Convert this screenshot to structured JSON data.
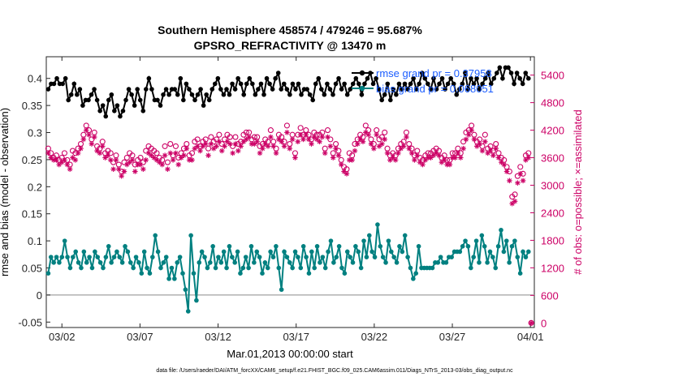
{
  "chart_data": {
    "type": "line",
    "title": "Southern Hemisphere 458574 / 479246 = 95.687%",
    "subtitle": "GPSRO_REFRACTIVITY @ 13470 m",
    "xlabel": "Mar.01,2013 00:00:00 start",
    "ylabel_left": "rmse and bias (model - observation)",
    "ylabel_right": "# of obs: o=possible; ×=assimilated",
    "footnote": "data file: /Users/raeder/DAI/ATM_forcXX/CAM6_setup/f.e21.FHIST_BGC.f09_025.CAM6assim.011/Diags_NTrS_2013-03/obs_diag_output.nc",
    "x_ticks": [
      "03/02",
      "03/07",
      "03/12",
      "03/17",
      "03/22",
      "03/27",
      "04/01"
    ],
    "x_tick_days": [
      1,
      6,
      11,
      16,
      21,
      26,
      31
    ],
    "x_range_days": [
      0,
      31.25
    ],
    "ylim_left": [
      -0.06,
      0.44
    ],
    "ylim_right": [
      -100,
      5800
    ],
    "y_ticks_left": [
      "-0.05",
      "0",
      "0.05",
      "0.1",
      "0.15",
      "0.2",
      "0.25",
      "0.3",
      "0.35",
      "0.4"
    ],
    "y_ticks_right": [
      "0",
      "600",
      "1200",
      "1800",
      "2400",
      "3000",
      "3600",
      "4200",
      "4800",
      "5400"
    ],
    "grid": false,
    "legend_position": "top-right",
    "colors": {
      "rmse": "#000000",
      "bias": "#008080",
      "counts": "#cc0066",
      "zero_line": "#b0b0b0",
      "legend_text": "#1a5cff"
    },
    "series": [
      {
        "name": "rmse grand pr = 0.37958",
        "axis": "left",
        "values": [
          0.38,
          0.39,
          0.39,
          0.4,
          0.39,
          0.39,
          0.4,
          0.36,
          0.37,
          0.39,
          0.37,
          0.38,
          0.35,
          0.36,
          0.36,
          0.37,
          0.38,
          0.36,
          0.34,
          0.35,
          0.33,
          0.36,
          0.37,
          0.34,
          0.35,
          0.33,
          0.34,
          0.36,
          0.38,
          0.37,
          0.35,
          0.38,
          0.36,
          0.34,
          0.38,
          0.4,
          0.38,
          0.36,
          0.36,
          0.35,
          0.37,
          0.38,
          0.37,
          0.38,
          0.38,
          0.37,
          0.4,
          0.36,
          0.39,
          0.38,
          0.37,
          0.36,
          0.37,
          0.38,
          0.35,
          0.37,
          0.36,
          0.38,
          0.39,
          0.4,
          0.38,
          0.37,
          0.38,
          0.37,
          0.39,
          0.38,
          0.4,
          0.39,
          0.37,
          0.39,
          0.4,
          0.39,
          0.37,
          0.38,
          0.39,
          0.37,
          0.4,
          0.39,
          0.38,
          0.4,
          0.41,
          0.38,
          0.39,
          0.38,
          0.37,
          0.39,
          0.38,
          0.39,
          0.37,
          0.38,
          0.38,
          0.37,
          0.36,
          0.39,
          0.4,
          0.38,
          0.37,
          0.39,
          0.38,
          0.37,
          0.39,
          0.4,
          0.38,
          0.39,
          0.37,
          0.38,
          0.39,
          0.4,
          0.39,
          0.37,
          0.39,
          0.4,
          0.41,
          0.39,
          0.4,
          0.38,
          0.36,
          0.37,
          0.39,
          0.36,
          0.38,
          0.37,
          0.39,
          0.38,
          0.39,
          0.38,
          0.39,
          0.4,
          0.38,
          0.39,
          0.41,
          0.4,
          0.39,
          0.38,
          0.4,
          0.38,
          0.39,
          0.4,
          0.38,
          0.39,
          0.4,
          0.39,
          0.37,
          0.38,
          0.39,
          0.41,
          0.38,
          0.4,
          0.39,
          0.4,
          0.38,
          0.39,
          0.4,
          0.41,
          0.39,
          0.4,
          0.41,
          0.42,
          0.4,
          0.42,
          0.42,
          0.41,
          0.39,
          0.41,
          0.4,
          0.39,
          0.41,
          0.4
        ]
      },
      {
        "name": "bias grand pr = 0.068051",
        "axis": "left",
        "values": [
          0.04,
          0.07,
          0.06,
          0.07,
          0.06,
          0.07,
          0.1,
          0.07,
          0.05,
          0.07,
          0.08,
          0.06,
          0.05,
          0.08,
          0.06,
          0.07,
          0.05,
          0.08,
          0.07,
          0.06,
          0.05,
          0.07,
          0.09,
          0.06,
          0.07,
          0.08,
          0.07,
          0.06,
          0.09,
          0.08,
          0.06,
          0.05,
          0.07,
          0.06,
          0.04,
          0.08,
          0.05,
          0.04,
          0.07,
          0.11,
          0.08,
          0.05,
          0.06,
          0.07,
          0.03,
          0.05,
          0.03,
          0.06,
          0.07,
          0.04,
          0.01,
          -0.03,
          0.11,
          0.04,
          -0.01,
          0.06,
          0.08,
          0.07,
          0.05,
          0.06,
          0.09,
          0.05,
          0.07,
          0.06,
          0.08,
          0.05,
          0.09,
          0.07,
          0.06,
          0.08,
          0.04,
          0.05,
          0.07,
          0.05,
          0.09,
          0.06,
          0.08,
          0.07,
          0.04,
          0.06,
          0.05,
          0.08,
          0.07,
          0.09,
          0.05,
          0.01,
          0.08,
          0.07,
          0.06,
          0.05,
          0.08,
          0.07,
          0.05,
          0.09,
          0.07,
          0.04,
          0.08,
          0.05,
          0.09,
          0.06,
          0.07,
          0.05,
          0.08,
          0.1,
          0.06,
          0.07,
          0.09,
          0.05,
          0.04,
          0.08,
          0.07,
          0.06,
          0.09,
          0.08,
          0.05,
          0.1,
          0.07,
          0.11,
          0.08,
          0.07,
          0.13,
          0.09,
          0.07,
          0.06,
          0.1,
          0.08,
          0.07,
          0.06,
          0.09,
          0.08,
          0.11,
          0.07,
          0.05,
          0.03,
          0.04,
          0.09,
          0.05,
          0.05,
          0.05,
          0.05,
          0.05,
          0.06,
          0.06,
          0.07,
          0.06,
          0.06,
          0.07,
          0.07,
          0.08,
          0.08,
          0.08,
          0.09,
          0.1,
          0.09,
          0.05,
          0.07,
          0.1,
          0.06,
          0.11,
          0.09,
          0.06,
          0.08,
          0.07,
          0.05,
          0.09,
          0.12,
          0.08,
          0.1,
          0.06,
          0.09,
          0.1,
          0.07,
          0.04,
          0.08,
          0.07,
          0.08
        ]
      },
      {
        "name": "possible",
        "axis": "right",
        "marker": "o",
        "values": [
          3800,
          3700,
          3600,
          3650,
          3550,
          3600,
          3700,
          3550,
          3450,
          3750,
          3700,
          3800,
          3900,
          4100,
          4300,
          4200,
          4000,
          4150,
          3850,
          3800,
          3950,
          3700,
          3750,
          3700,
          3500,
          3650,
          3450,
          3300,
          3500,
          3600,
          3700,
          3650,
          3450,
          3550,
          3600,
          3500,
          3750,
          3850,
          3800,
          3750,
          3700,
          3600,
          3550,
          3850,
          3500,
          3900,
          3650,
          3850,
          3600,
          3700,
          3800,
          3900,
          3650,
          3700,
          3950,
          4000,
          3850,
          3950,
          4000,
          3800,
          4050,
          3950,
          4000,
          4100,
          3900,
          4000,
          4100,
          4050,
          3850,
          4050,
          3900,
          3950,
          4100,
          4150,
          4150,
          4000,
          4050,
          4050,
          3850,
          3900,
          4000,
          3950,
          4200,
          3950,
          3800,
          4100,
          4050,
          3950,
          4300,
          3900,
          4100,
          3700,
          4100,
          4250,
          4100,
          4200,
          4100,
          4000,
          4150,
          4100,
          4100,
          4150,
          3800,
          4200,
          4000,
          3700,
          3900,
          3750,
          3550,
          3400,
          3350,
          3700,
          3650,
          3900,
          4000,
          4100,
          4050,
          4300,
          4200,
          4000,
          3900,
          4200,
          4000,
          4050,
          4150,
          3800,
          3650,
          3700,
          3650,
          3800,
          3900,
          3950,
          4150,
          3900,
          3800,
          3650,
          3750,
          3600,
          3550,
          3650,
          3700,
          3700,
          3750,
          3800,
          3750,
          3600,
          3650,
          3550,
          3550,
          3700,
          3700,
          3800,
          3700,
          3950,
          4150,
          4200,
          4300,
          4100,
          3950,
          4000,
          3850,
          4100,
          3800,
          3850,
          3750,
          3900,
          3700,
          3600,
          3550,
          3400,
          3300,
          2750,
          2800,
          3200,
          3400,
          3250,
          3650,
          3700
        ]
      },
      {
        "name": "assimilated",
        "axis": "right",
        "marker": "*",
        "values": [
          3700,
          3600,
          3550,
          3550,
          3450,
          3500,
          3550,
          3450,
          3350,
          3600,
          3550,
          3700,
          3800,
          4000,
          4200,
          4100,
          3900,
          4050,
          3750,
          3700,
          3850,
          3600,
          3650,
          3550,
          3350,
          3550,
          3350,
          3200,
          3300,
          3450,
          3500,
          3550,
          3300,
          3450,
          3450,
          3350,
          3550,
          3700,
          3650,
          3600,
          3550,
          3500,
          3450,
          3650,
          3350,
          3700,
          3550,
          3700,
          3450,
          3600,
          3650,
          3800,
          3550,
          3550,
          3800,
          3850,
          3750,
          3850,
          3900,
          3650,
          3900,
          3800,
          3850,
          3950,
          3750,
          3850,
          3950,
          3900,
          3700,
          3900,
          3750,
          3850,
          3950,
          4000,
          4050,
          3900,
          3900,
          3950,
          3700,
          3800,
          3900,
          3850,
          4050,
          3850,
          3700,
          4000,
          3950,
          3850,
          4150,
          3800,
          4000,
          3600,
          3950,
          4100,
          4000,
          4100,
          4000,
          3900,
          4050,
          4000,
          3950,
          4050,
          3700,
          4050,
          3850,
          3600,
          3800,
          3650,
          3450,
          3300,
          3250,
          3550,
          3550,
          3750,
          3900,
          4000,
          3950,
          4150,
          4100,
          3900,
          3800,
          4100,
          3850,
          3900,
          4000,
          3700,
          3550,
          3600,
          3550,
          3700,
          3800,
          3850,
          4050,
          3800,
          3700,
          3550,
          3650,
          3500,
          3450,
          3550,
          3600,
          3600,
          3650,
          3700,
          3650,
          3500,
          3550,
          3450,
          3450,
          3600,
          3600,
          3700,
          3600,
          3800,
          4000,
          4100,
          4200,
          4000,
          3850,
          3900,
          3750,
          3950,
          3700,
          3750,
          3650,
          3800,
          3600,
          3500,
          3450,
          3300,
          3100,
          2600,
          2650,
          3050,
          3250,
          3100,
          3550,
          3600
        ]
      }
    ],
    "extra_points": [
      {
        "series": "possible",
        "day": 31.05,
        "value": 0
      },
      {
        "series": "assimilated",
        "day": 31.05,
        "value": 0
      }
    ]
  }
}
